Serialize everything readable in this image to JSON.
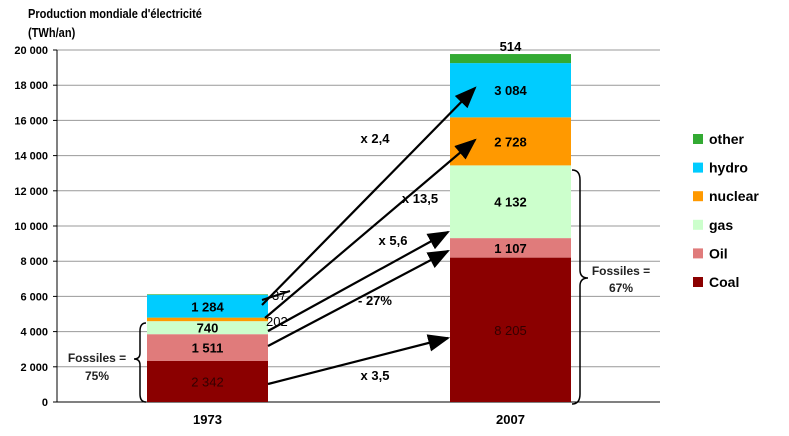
{
  "chart_data": {
    "type": "bar",
    "stacked": true,
    "title": "Production mondiale d'électricité",
    "ylabel": "(TWh/an)",
    "categories": [
      "1973",
      "2007"
    ],
    "ylim": [
      0,
      20000
    ],
    "yticks": [
      "0",
      "2 000",
      "4 000",
      "6 000",
      "8 000",
      "10 000",
      "12 000",
      "14 000",
      "16 000",
      "18 000",
      "20 000"
    ],
    "grid": true,
    "legend_position": "right",
    "series": [
      {
        "name": "Coal",
        "color": "#8b0000",
        "values": [
          2342,
          8205
        ],
        "labels": [
          "2 342",
          "8 205"
        ]
      },
      {
        "name": "Oil",
        "color": "#e07b7b",
        "values": [
          1511,
          1107
        ],
        "labels": [
          "1 511",
          "1 107"
        ]
      },
      {
        "name": "gas",
        "color": "#ccffcc",
        "values": [
          740,
          4132
        ],
        "labels": [
          "740",
          "4 132"
        ]
      },
      {
        "name": "nuclear",
        "color": "#ff9900",
        "values": [
          202,
          2728
        ],
        "labels": [
          "202",
          "2 728"
        ]
      },
      {
        "name": "hydro",
        "color": "#00ccff",
        "values": [
          1284,
          3084
        ],
        "labels": [
          "1 284",
          "3 084"
        ]
      },
      {
        "name": "other",
        "color": "#33aa33",
        "values": [
          37,
          514
        ],
        "labels": [
          "37",
          "514"
        ]
      }
    ],
    "annotations": {
      "growth": [
        {
          "series": "hydro",
          "text": "x 2,4"
        },
        {
          "series": "nuclear",
          "text": "x 13,5"
        },
        {
          "series": "gas",
          "text": "x 5,6"
        },
        {
          "series": "Oil",
          "text": "- 27%"
        },
        {
          "series": "Coal",
          "text": "x 3,5"
        }
      ],
      "fossiles_1973": [
        "Fossiles =",
        "75%"
      ],
      "fossiles_2007": [
        "Fossiles =",
        "67%"
      ]
    }
  }
}
